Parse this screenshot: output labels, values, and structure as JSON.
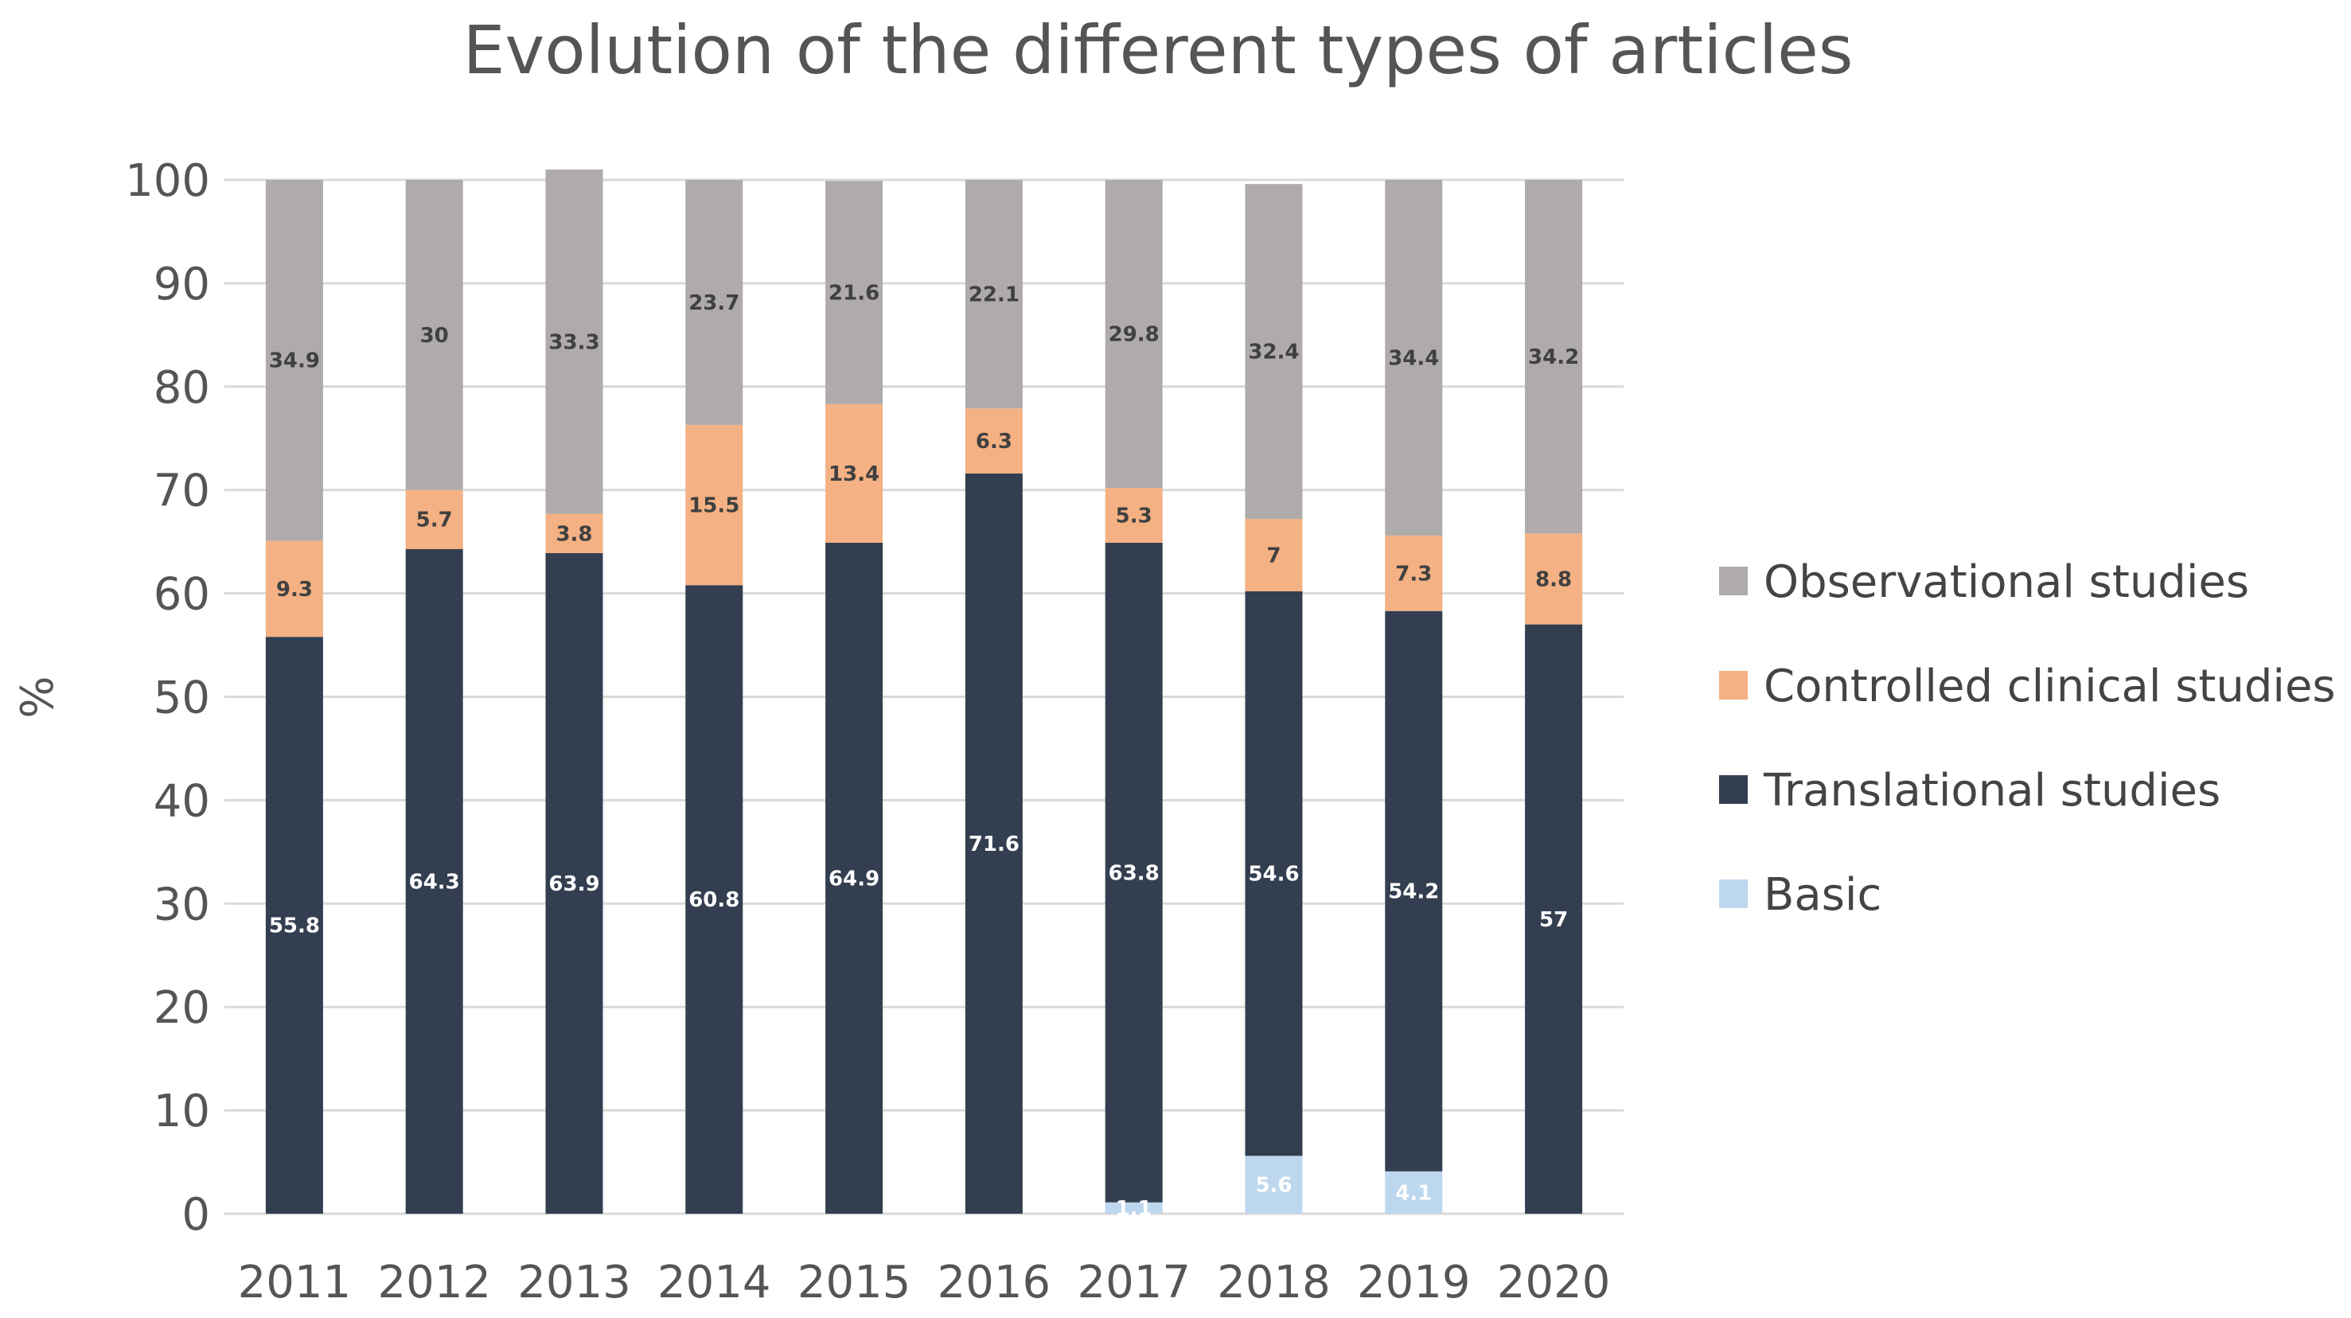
{
  "chart_data": {
    "type": "bar",
    "stacked": true,
    "title": "Evolution of the different types of articles",
    "xlabel": "",
    "ylabel": "%",
    "ylim": [
      0,
      100
    ],
    "yticks": [
      "0",
      "10",
      "20",
      "30",
      "40",
      "50",
      "60",
      "70",
      "80",
      "90",
      "100"
    ],
    "grid": true,
    "legend_position": "right",
    "categories": [
      "2011",
      "2012",
      "2013",
      "2014",
      "2015",
      "2016",
      "2017",
      "2018",
      "2019",
      "2020"
    ],
    "series": [
      {
        "name": "Basic",
        "color": "#bdd7ee",
        "label_color": "#ffffff",
        "values": [
          0,
          0,
          0,
          0,
          0,
          0,
          1.1,
          5.6,
          4.1,
          0
        ],
        "labels": [
          "",
          "",
          "",
          "",
          "",
          "",
          "1.1",
          "5.6",
          "4.1",
          ""
        ]
      },
      {
        "name": "Translational studies",
        "color": "#333f50",
        "label_color": "#ffffff",
        "values": [
          55.8,
          64.3,
          63.9,
          60.8,
          64.9,
          71.6,
          63.8,
          54.6,
          54.2,
          57
        ],
        "labels": [
          "55.8",
          "64.3",
          "63.9",
          "60.8",
          "64.9",
          "71.6",
          "63.8",
          "54.6",
          "54.2",
          "57"
        ]
      },
      {
        "name": "Controlled clinical studies",
        "color": "#f4b183",
        "label_color": "#404040",
        "values": [
          9.3,
          5.7,
          3.8,
          15.5,
          13.4,
          6.3,
          5.3,
          7,
          7.3,
          8.8
        ],
        "labels": [
          "9.3",
          "5.7",
          "3.8",
          "15.5",
          "13.4",
          "6.3",
          "5.3",
          "7",
          "7.3",
          "8.8"
        ]
      },
      {
        "name": "Observational studies",
        "color": "#afabab",
        "label_color": "#404040",
        "values": [
          34.9,
          30,
          33.3,
          23.7,
          21.6,
          22.1,
          29.8,
          32.4,
          34.4,
          34.2
        ],
        "labels": [
          "34.9",
          "30",
          "33.3",
          "23.7",
          "21.6",
          "22.1",
          "29.8",
          "32.4",
          "34.4",
          "34.2"
        ]
      }
    ],
    "legend_order": [
      "Observational studies",
      "Controlled clinical studies",
      "Translational studies",
      "Basic"
    ]
  }
}
